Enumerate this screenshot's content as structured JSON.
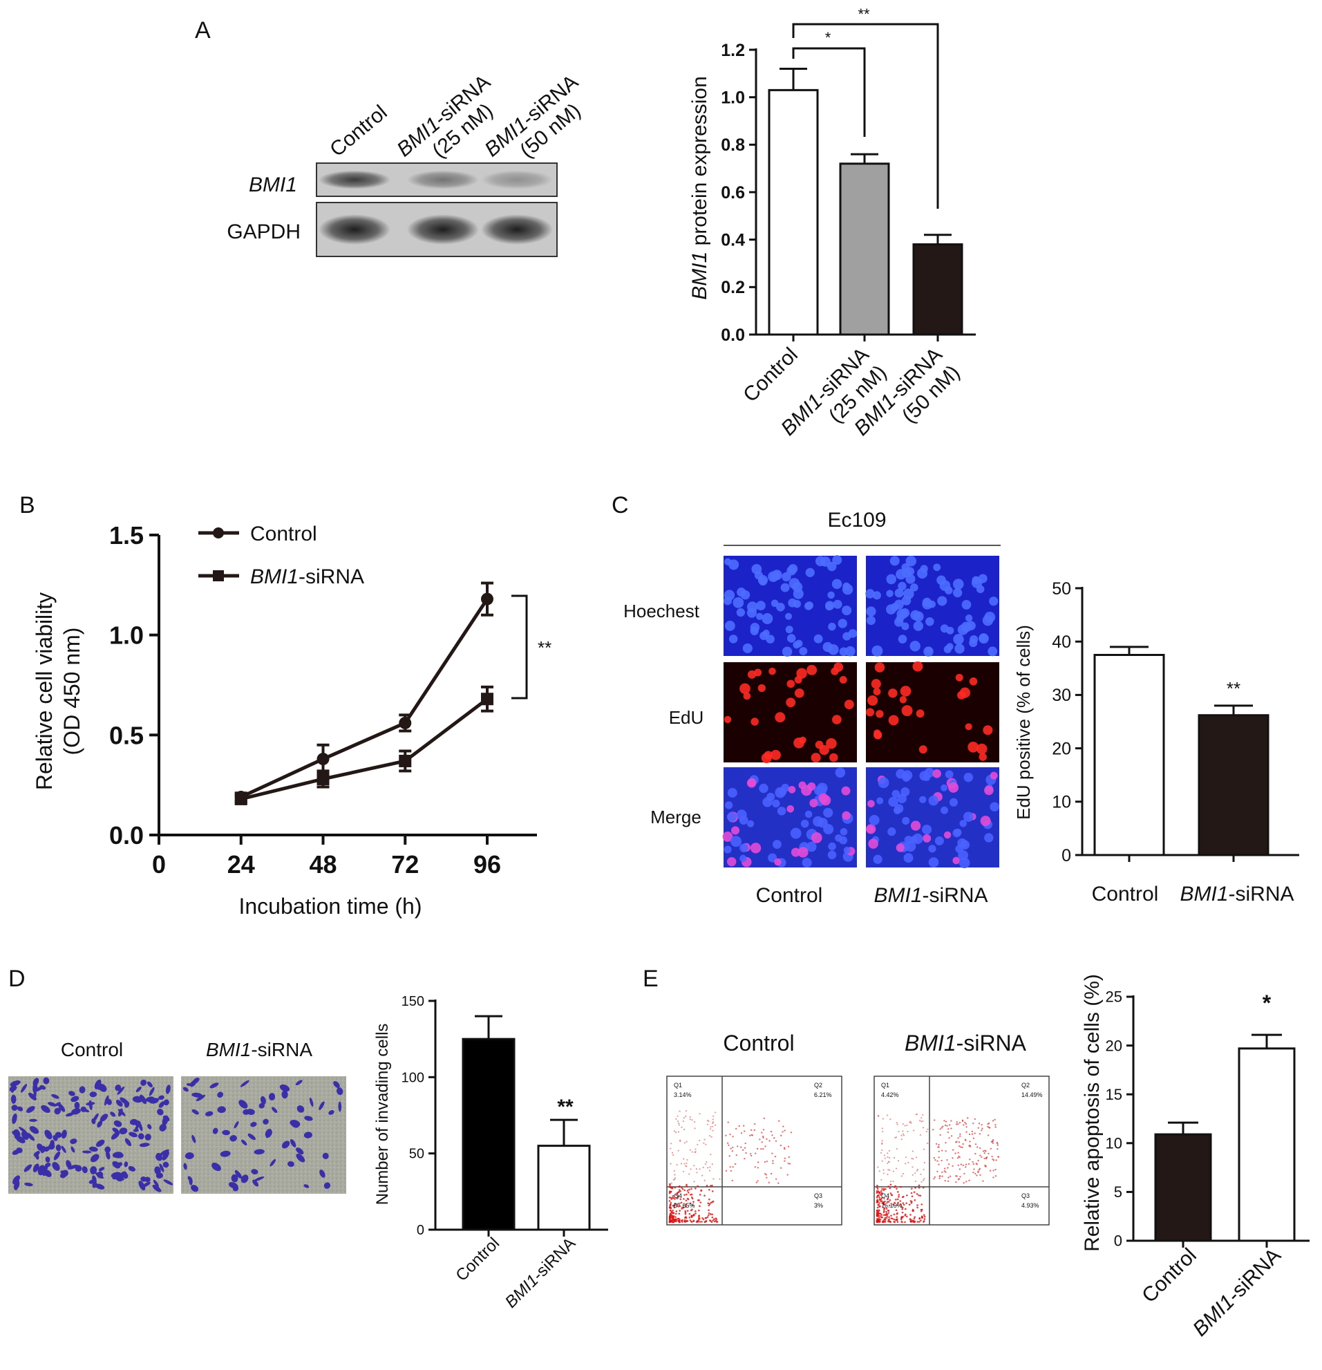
{
  "panels": {
    "A": {
      "letter": "A",
      "blot": {
        "lane_headers": [
          {
            "gene": "",
            "rest": "Control",
            "conc": ""
          },
          {
            "gene": "BMI1",
            "rest": "-siRNA",
            "conc": "(25 nM)"
          },
          {
            "gene": "BMI1",
            "rest": "-siRNA",
            "conc": "(50 nM)"
          }
        ],
        "row_labels": [
          {
            "text": "BMI1",
            "italic": true,
            "intensity": [
              0.75,
              0.45,
              0.3
            ]
          },
          {
            "text": "GAPDH",
            "italic": false,
            "intensity": [
              0.9,
              0.9,
              0.9
            ]
          }
        ]
      },
      "significance": [
        "**",
        "*"
      ]
    },
    "B": {
      "letter": "B",
      "legend": [
        {
          "gene": "",
          "rest": "Control",
          "marker": "circle"
        },
        {
          "gene": "BMI1",
          "rest": "-siRNA",
          "marker": "square"
        }
      ],
      "significance": "**"
    },
    "C": {
      "letter": "C",
      "cell_line": "Ec109",
      "row_labels": [
        "Hoechest",
        "EdU",
        "Merge"
      ],
      "col_labels": [
        {
          "gene": "",
          "rest": "Control"
        },
        {
          "gene": "BMI1",
          "rest": "-siRNA"
        }
      ],
      "significance": "**"
    },
    "D": {
      "letter": "D",
      "col_labels": [
        {
          "gene": "",
          "rest": "Control"
        },
        {
          "gene": "BMI1",
          "rest": "-siRNA"
        }
      ],
      "significance": "**"
    },
    "E": {
      "letter": "E",
      "col_labels": [
        {
          "gene": "",
          "rest": "Control"
        },
        {
          "gene": "BMI1",
          "rest": "-siRNA"
        }
      ],
      "flow_plots": [
        {
          "Q1": "3.14%",
          "Q2": "6.21%",
          "Q3": "3%",
          "Q4": "87.65%"
        },
        {
          "Q1": "4.42%",
          "Q2": "14.49%",
          "Q3": "4.93%",
          "Q4": "76.16%"
        }
      ],
      "significance": "*"
    }
  },
  "chart_data": [
    {
      "panel": "A",
      "type": "bar",
      "categories": [
        {
          "gene": "",
          "rest": "Control",
          "conc": ""
        },
        {
          "gene": "BMI1",
          "rest": "-siRNA",
          "conc": "(25 nM)"
        },
        {
          "gene": "BMI1",
          "rest": "-siRNA",
          "conc": "(50 nM)"
        }
      ],
      "values": [
        1.03,
        0.72,
        0.38
      ],
      "errors": [
        0.09,
        0.04,
        0.04
      ],
      "colors": [
        "#ffffff",
        "#a0a0a0",
        "#231815"
      ],
      "ylabel": {
        "gene": "BMI1",
        "rest": " protein expression"
      },
      "ylim": [
        0,
        1.2
      ],
      "yticks": [
        "0.0",
        "0.2",
        "0.4",
        "0.6",
        "0.8",
        "1.0",
        "1.2"
      ]
    },
    {
      "panel": "B",
      "type": "line",
      "x": [
        24,
        48,
        72,
        96
      ],
      "series": [
        {
          "name": "Control",
          "values": [
            0.19,
            0.38,
            0.56,
            1.18
          ],
          "errors": [
            0.02,
            0.07,
            0.04,
            0.08
          ]
        },
        {
          "name": "BMI1-siRNA",
          "values": [
            0.18,
            0.28,
            0.37,
            0.68
          ],
          "errors": [
            0.02,
            0.04,
            0.05,
            0.06
          ]
        }
      ],
      "xlabel": "Incubation time (h)",
      "ylabel": [
        "Relative cell viability",
        "(OD 450 nm)"
      ],
      "xticks": [
        "0",
        "24",
        "48",
        "72",
        "96"
      ],
      "yticks": [
        "0.0",
        "0.5",
        "1.0",
        "1.5"
      ],
      "ylim": [
        0,
        1.5
      ]
    },
    {
      "panel": "C",
      "type": "bar",
      "categories": [
        {
          "gene": "",
          "rest": "Control"
        },
        {
          "gene": "BMI1",
          "rest": "-siRNA"
        }
      ],
      "values": [
        37.5,
        26.2
      ],
      "errors": [
        1.5,
        1.8
      ],
      "colors": [
        "#ffffff",
        "#231815"
      ],
      "ylabel": "EdU positive (% of cells)",
      "ylim": [
        0,
        50
      ],
      "yticks": [
        "0",
        "10",
        "20",
        "30",
        "40",
        "50"
      ]
    },
    {
      "panel": "D",
      "type": "bar",
      "categories": [
        {
          "gene": "",
          "rest": "Control"
        },
        {
          "gene": "BMI1",
          "rest": "-siRNA"
        }
      ],
      "values": [
        125,
        55
      ],
      "errors": [
        15,
        17
      ],
      "colors": [
        "#000000",
        "#ffffff"
      ],
      "ylabel": "Number of invading cells",
      "ylim": [
        0,
        150
      ],
      "yticks": [
        "0",
        "50",
        "100",
        "150"
      ]
    },
    {
      "panel": "E",
      "type": "bar",
      "categories": [
        {
          "gene": "",
          "rest": "Control"
        },
        {
          "gene": "BMI1",
          "rest": "-siRNA"
        }
      ],
      "values": [
        10.9,
        19.7
      ],
      "errors": [
        1.2,
        1.4
      ],
      "colors": [
        "#231815",
        "#ffffff"
      ],
      "ylabel": "Relative apoptosis of cells (%)",
      "ylim": [
        0,
        25
      ],
      "yticks": [
        "0",
        "5",
        "10",
        "15",
        "20",
        "25"
      ]
    }
  ]
}
